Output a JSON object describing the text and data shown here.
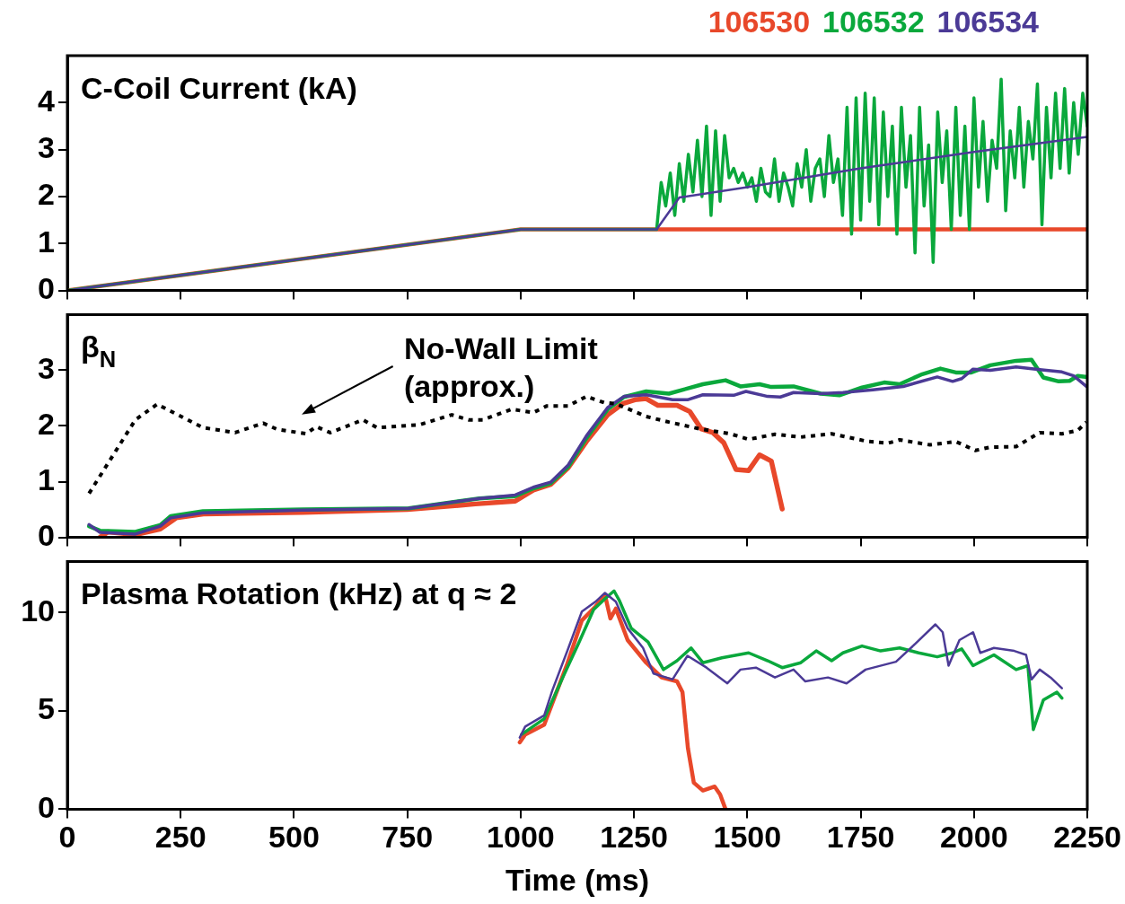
{
  "chart_data": [
    {
      "type": "line",
      "title": "C-Coil Current (kA)",
      "legend": "top right",
      "marker": "none",
      "tick_labels": "y",
      "xlim": [
        0,
        2250
      ],
      "xticks": [
        0,
        250,
        500,
        750,
        1000,
        1250,
        1500,
        1750,
        2000,
        2250
      ],
      "ylim": [
        0,
        5
      ],
      "yticks": [
        0,
        1,
        2,
        3,
        4
      ],
      "series": [
        {
          "name": "106530",
          "color": "#e8482a",
          "x": [
            0,
            1000,
            2250
          ],
          "values": [
            0,
            1.3,
            1.3
          ]
        },
        {
          "name": "106532",
          "color": "#0aa83c",
          "x": [
            0,
            1000,
            1300,
            1310,
            1320,
            1330,
            1340,
            1350,
            1360,
            1370,
            1380,
            1390,
            1400,
            1410,
            1420,
            1430,
            1440,
            1450,
            1460,
            1470,
            1480,
            1490,
            1500,
            1510,
            1520,
            1530,
            1540,
            1550,
            1560,
            1570,
            1580,
            1590,
            1600,
            1610,
            1620,
            1630,
            1640,
            1650,
            1660,
            1670,
            1680,
            1690,
            1700,
            1710,
            1720,
            1730,
            1740,
            1750,
            1760,
            1770,
            1780,
            1790,
            1800,
            1810,
            1820,
            1830,
            1840,
            1850,
            1860,
            1870,
            1880,
            1890,
            1900,
            1910,
            1920,
            1930,
            1940,
            1950,
            1960,
            1970,
            1980,
            1990,
            2000,
            2010,
            2020,
            2030,
            2040,
            2050,
            2060,
            2070,
            2080,
            2090,
            2100,
            2110,
            2120,
            2130,
            2140,
            2150,
            2160,
            2170,
            2180,
            2190,
            2200,
            2210,
            2220,
            2230,
            2240,
            2250
          ],
          "values": [
            0,
            1.3,
            1.3,
            2.3,
            1.8,
            2.5,
            1.6,
            2.7,
            1.9,
            2.9,
            2.1,
            3.2,
            2.0,
            3.5,
            1.6,
            3.4,
            1.9,
            3.3,
            2.4,
            2.6,
            2.3,
            2.5,
            2.2,
            2.4,
            1.9,
            2.6,
            2.1,
            2.0,
            2.8,
            1.9,
            2.5,
            2.2,
            1.8,
            2.7,
            2.2,
            3.0,
            1.9,
            2.6,
            2.8,
            2.0,
            3.3,
            2.3,
            2.8,
            1.6,
            3.9,
            1.2,
            4.1,
            1.5,
            4.2,
            1.9,
            4.1,
            1.4,
            3.8,
            2.0,
            3.5,
            1.2,
            3.9,
            2.2,
            3.3,
            0.8,
            3.9,
            1.8,
            3.1,
            0.6,
            3.8,
            2.3,
            3.4,
            1.3,
            3.9,
            1.6,
            3.5,
            1.3,
            4.1,
            2.2,
            3.6,
            1.9,
            3.2,
            2.6,
            4.5,
            1.7,
            3.4,
            2.4,
            3.9,
            2.2,
            3.6,
            2.8,
            4.4,
            1.4,
            3.9,
            2.4,
            4.2,
            2.6,
            4.3,
            2.5,
            4.0,
            2.9,
            4.2,
            3.5
          ]
        },
        {
          "name": "106534",
          "color": "#4b3a96",
          "x": [
            0,
            1000,
            1300,
            1350,
            1500,
            1750,
            2000,
            2250
          ],
          "values": [
            0,
            1.3,
            1.3,
            1.98,
            2.2,
            2.6,
            2.95,
            3.27
          ]
        }
      ]
    },
    {
      "type": "line",
      "title": "β$_{N}$",
      "marker": "none",
      "tick_labels": "y",
      "xlim": [
        0,
        2250
      ],
      "xticks": [
        0,
        250,
        500,
        750,
        1000,
        1250,
        1500,
        1750,
        2000,
        2250
      ],
      "ylim": [
        0,
        4
      ],
      "yticks": [
        0,
        1,
        2,
        3
      ],
      "annotations": [
        "No-Wall Limit (approx.)"
      ],
      "series": [
        {
          "color": "#e8482a",
          "x": [
            72,
            90,
            150,
            205,
            240,
            300,
            520,
            750,
            900,
            988,
            1028,
            1066,
            1105,
            1145,
            1192,
            1225,
            1252,
            1277,
            1303,
            1345,
            1373,
            1398,
            1424,
            1448,
            1475,
            1503,
            1527,
            1553,
            1577
          ],
          "values": [
            0.0,
            0.1,
            0.05,
            0.15,
            0.35,
            0.42,
            0.45,
            0.5,
            0.6,
            0.65,
            0.85,
            0.95,
            1.25,
            1.72,
            2.2,
            2.4,
            2.47,
            2.49,
            2.37,
            2.37,
            2.26,
            1.95,
            1.88,
            1.7,
            1.22,
            1.2,
            1.48,
            1.37,
            0.51
          ]
        },
        {
          "color": "#0aa83c",
          "x": [
            48,
            72,
            150,
            205,
            228,
            299,
            519,
            753,
            909,
            988,
            1028,
            1066,
            1105,
            1145,
            1192,
            1228,
            1277,
            1327,
            1402,
            1452,
            1485,
            1527,
            1553,
            1602,
            1662,
            1703,
            1753,
            1802,
            1836,
            1886,
            1926,
            1960,
            1994,
            2036,
            2093,
            2127,
            2153,
            2187,
            2211,
            2229,
            2250
          ],
          "values": [
            0.2,
            0.12,
            0.1,
            0.22,
            0.38,
            0.47,
            0.5,
            0.52,
            0.7,
            0.74,
            0.88,
            0.97,
            1.27,
            1.78,
            2.3,
            2.52,
            2.62,
            2.58,
            2.75,
            2.82,
            2.71,
            2.75,
            2.7,
            2.71,
            2.58,
            2.55,
            2.69,
            2.78,
            2.75,
            2.93,
            3.03,
            2.96,
            2.96,
            3.09,
            3.17,
            3.19,
            2.87,
            2.8,
            2.81,
            2.9,
            2.88
          ]
        },
        {
          "color": "#4b3a96",
          "x": [
            48,
            72,
            150,
            205,
            228,
            299,
            519,
            753,
            909,
            988,
            1028,
            1066,
            1105,
            1145,
            1192,
            1228,
            1277,
            1335,
            1368,
            1402,
            1470,
            1497,
            1545,
            1573,
            1602,
            1662,
            1711,
            1777,
            1844,
            1919,
            1953,
            1973,
            1998,
            2036,
            2093,
            2145,
            2194,
            2220,
            2248
          ],
          "values": [
            0.23,
            0.09,
            0.06,
            0.2,
            0.35,
            0.44,
            0.49,
            0.52,
            0.7,
            0.76,
            0.9,
            0.99,
            1.3,
            1.82,
            2.33,
            2.53,
            2.56,
            2.47,
            2.47,
            2.56,
            2.55,
            2.62,
            2.53,
            2.52,
            2.6,
            2.58,
            2.6,
            2.65,
            2.71,
            2.88,
            2.8,
            2.85,
            3.02,
            3.0,
            3.06,
            3.01,
            2.97,
            2.9,
            2.71
          ]
        },
        {
          "color": "#000000",
          "line_style": "dotted",
          "x": [
            48,
            150,
            198,
            299,
            370,
            432,
            463,
            527,
            549,
            580,
            652,
            683,
            776,
            848,
            885,
            917,
            980,
            1028,
            1058,
            1105,
            1145,
            1184,
            1210,
            1277,
            1327,
            1394,
            1462,
            1503,
            1561,
            1618,
            1686,
            1761,
            1810,
            1836,
            1903,
            1960,
            2003,
            2036,
            2093,
            2145,
            2194,
            2229,
            2248
          ],
          "values": [
            0.79,
            2.11,
            2.39,
            1.97,
            1.88,
            2.05,
            1.94,
            1.86,
            1.99,
            1.88,
            2.11,
            1.97,
            2.02,
            2.2,
            2.11,
            2.11,
            2.3,
            2.24,
            2.36,
            2.36,
            2.53,
            2.42,
            2.4,
            2.17,
            2.07,
            1.95,
            1.86,
            1.76,
            1.85,
            1.8,
            1.86,
            1.73,
            1.69,
            1.75,
            1.66,
            1.72,
            1.56,
            1.62,
            1.63,
            1.88,
            1.86,
            1.92,
            2.07
          ]
        }
      ]
    },
    {
      "type": "line",
      "title": "Plasma Rotation (kHz) at q ≈ 2",
      "xlabel": "Time (ms)",
      "marker": "none",
      "xlim": [
        0,
        2250
      ],
      "xticks": [
        0,
        250,
        500,
        750,
        1000,
        1250,
        1500,
        1750,
        2000,
        2250
      ],
      "ylim": [
        0,
        12.6
      ],
      "yticks": [
        0,
        5,
        10
      ],
      "series": [
        {
          "color": "#e8482a",
          "x": [
            998,
            1010,
            1052,
            1070,
            1103,
            1135,
            1165,
            1186,
            1198,
            1210,
            1236,
            1277,
            1311,
            1345,
            1357,
            1369,
            1382,
            1402,
            1428,
            1440,
            1452
          ],
          "values": [
            3.4,
            3.8,
            4.3,
            5.4,
            7.4,
            9.6,
            10.3,
            10.9,
            9.7,
            10.2,
            8.6,
            7.45,
            6.7,
            6.5,
            5.95,
            3.1,
            1.35,
            0.95,
            1.15,
            0.75,
            0
          ]
        },
        {
          "color": "#0aa83c",
          "x": [
            1002,
            1052,
            1093,
            1127,
            1161,
            1186,
            1206,
            1218,
            1244,
            1281,
            1315,
            1345,
            1376,
            1402,
            1444,
            1503,
            1545,
            1577,
            1618,
            1652,
            1686,
            1711,
            1753,
            1794,
            1836,
            1878,
            1919,
            1953,
            1973,
            1998,
            2044,
            2093,
            2119,
            2131,
            2153,
            2183,
            2194
          ],
          "values": [
            3.8,
            4.6,
            6.7,
            8.4,
            10.15,
            10.7,
            11.1,
            10.6,
            9.2,
            8.5,
            7.1,
            7.55,
            8.2,
            7.45,
            7.7,
            7.95,
            7.55,
            7.2,
            7.45,
            8.05,
            7.55,
            7.95,
            8.3,
            8.05,
            8.2,
            7.95,
            7.75,
            7.95,
            8.15,
            7.3,
            7.85,
            7.1,
            7.3,
            4.05,
            5.55,
            5.95,
            5.65
          ]
        },
        {
          "color": "#4b3a96",
          "x": [
            998,
            1010,
            1052,
            1070,
            1103,
            1135,
            1165,
            1186,
            1210,
            1236,
            1270,
            1293,
            1335,
            1368,
            1410,
            1456,
            1485,
            1519,
            1561,
            1602,
            1628,
            1678,
            1719,
            1761,
            1828,
            1870,
            1915,
            1931,
            1944,
            1968,
            1998,
            2014,
            2044,
            2089,
            2115,
            2127,
            2145,
            2169,
            2194
          ],
          "values": [
            3.64,
            4.2,
            4.77,
            6.05,
            8.05,
            10.05,
            10.55,
            11.0,
            10.55,
            9.2,
            8.2,
            6.9,
            6.6,
            7.8,
            7.2,
            6.4,
            7.1,
            7.2,
            6.7,
            7.1,
            6.5,
            6.7,
            6.4,
            7.1,
            7.5,
            8.4,
            9.4,
            9.0,
            7.3,
            8.6,
            9.0,
            7.95,
            8.2,
            8.05,
            7.85,
            6.6,
            7.1,
            6.7,
            6.15
          ]
        }
      ]
    }
  ]
}
